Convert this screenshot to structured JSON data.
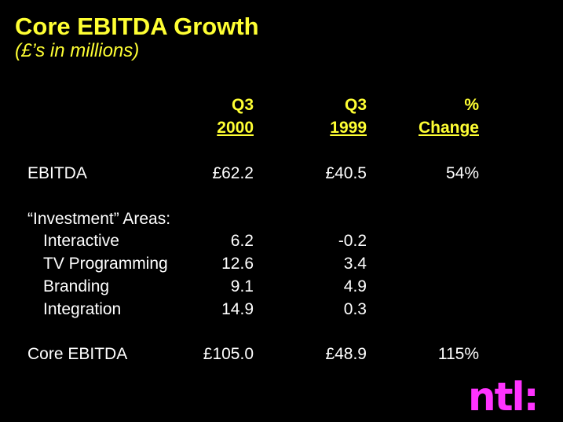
{
  "title": "Core EBITDA Growth",
  "subtitle": "(£’s in millions)",
  "columns": [
    {
      "line1": "Q3",
      "line2": "2000"
    },
    {
      "line1": "Q3",
      "line2": "1999"
    },
    {
      "line1": "%",
      "line2": "Change"
    }
  ],
  "rows": {
    "ebitda": {
      "label": "EBITDA",
      "v2000": "£62.2",
      "v1999": "£40.5",
      "change": "54%"
    },
    "investment_header": {
      "label": "“Investment” Areas:"
    },
    "interactive": {
      "label": "Interactive",
      "v2000": "6.2",
      "v1999": "-0.2"
    },
    "tv": {
      "label": "TV Programming",
      "v2000": "12.6",
      "v1999": "3.4"
    },
    "branding": {
      "label": "Branding",
      "v2000": "9.1",
      "v1999": "4.9"
    },
    "integration": {
      "label": "Integration",
      "v2000": "14.9",
      "v1999": "0.3"
    },
    "core": {
      "label": "Core EBITDA",
      "v2000": "£105.0",
      "v1999": "£48.9",
      "change": "115%"
    }
  },
  "logo": {
    "text": "ntl:"
  },
  "colors": {
    "background": "#000000",
    "heading": "#ffff33",
    "body_text": "#ffffff",
    "logo": "#ff33ff"
  }
}
